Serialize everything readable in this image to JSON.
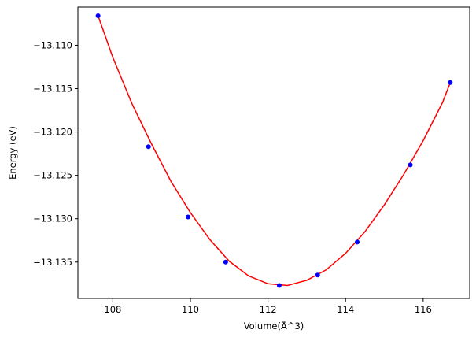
{
  "chart_data": {
    "type": "scatter",
    "xlabel": "Volume(Å^3)",
    "ylabel": "Energy (eV)",
    "xlim": [
      107.1,
      117.2
    ],
    "ylim": [
      -13.1392,
      -13.1056
    ],
    "xticks": [
      108,
      110,
      112,
      114,
      116
    ],
    "yticks": [
      -13.11,
      -13.115,
      -13.12,
      -13.125,
      -13.13,
      -13.135
    ],
    "xtick_labels": [
      "108",
      "110",
      "112",
      "114",
      "116"
    ],
    "ytick_labels": [
      "−13.110",
      "−13.115",
      "−13.120",
      "−13.125",
      "−13.130",
      "−13.135"
    ],
    "grid": false,
    "series": [
      {
        "kind": "points",
        "color": "#0000ff",
        "x": [
          107.62,
          108.92,
          109.94,
          110.91,
          112.29,
          113.28,
          114.3,
          115.67,
          116.7
        ],
        "y": [
          -13.1066,
          -13.1217,
          -13.1298,
          -13.135,
          -13.1377,
          -13.1365,
          -13.1327,
          -13.1238,
          -13.1143
        ]
      },
      {
        "kind": "fit-curve",
        "color": "#ff0000",
        "x": [
          107.62,
          108.0,
          108.5,
          109.0,
          109.5,
          110.0,
          110.5,
          111.0,
          111.5,
          112.0,
          112.5,
          113.0,
          113.5,
          114.0,
          114.5,
          115.0,
          115.5,
          116.0,
          116.5,
          116.7
        ],
        "y": [
          -13.1066,
          -13.1114,
          -13.1168,
          -13.1214,
          -13.1257,
          -13.1293,
          -13.1324,
          -13.1349,
          -13.1366,
          -13.1375,
          -13.1377,
          -13.1371,
          -13.1359,
          -13.134,
          -13.1315,
          -13.1284,
          -13.1249,
          -13.121,
          -13.1166,
          -13.1143
        ]
      }
    ]
  }
}
